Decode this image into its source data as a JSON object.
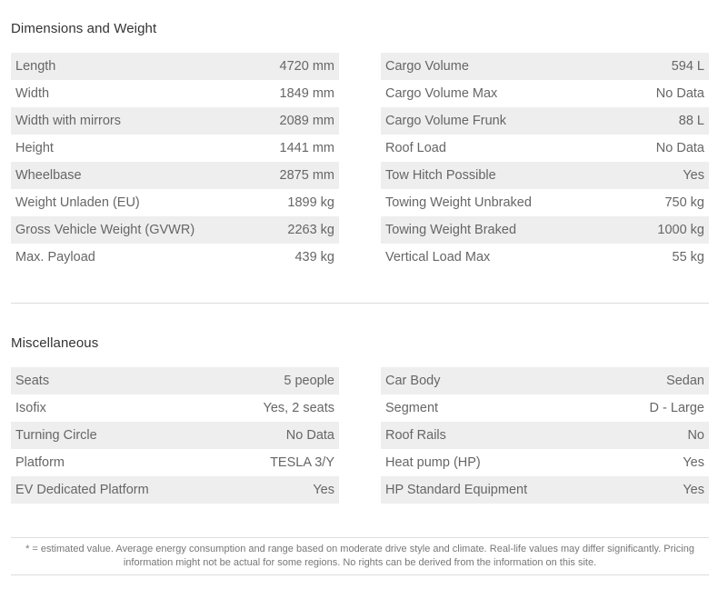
{
  "sections": [
    {
      "title": "Dimensions and Weight",
      "left": [
        [
          "Length",
          "4720 mm"
        ],
        [
          "Width",
          "1849 mm"
        ],
        [
          "Width with mirrors",
          "2089 mm"
        ],
        [
          "Height",
          "1441 mm"
        ],
        [
          "Wheelbase",
          "2875 mm"
        ],
        [
          "Weight Unladen (EU)",
          "1899 kg"
        ],
        [
          "Gross Vehicle Weight (GVWR)",
          "2263 kg"
        ],
        [
          "Max. Payload",
          "439 kg"
        ]
      ],
      "right": [
        [
          "Cargo Volume",
          "594 L"
        ],
        [
          "Cargo Volume Max",
          "No Data"
        ],
        [
          "Cargo Volume Frunk",
          "88 L"
        ],
        [
          "Roof Load",
          "No Data"
        ],
        [
          "Tow Hitch Possible",
          "Yes"
        ],
        [
          "Towing Weight Unbraked",
          "750 kg"
        ],
        [
          "Towing Weight Braked",
          "1000 kg"
        ],
        [
          "Vertical Load Max",
          "55 kg"
        ]
      ]
    },
    {
      "title": "Miscellaneous",
      "left": [
        [
          "Seats",
          "5 people"
        ],
        [
          "Isofix",
          "Yes, 2 seats"
        ],
        [
          "Turning Circle",
          "No Data"
        ],
        [
          "Platform",
          "TESLA 3/Y"
        ],
        [
          "EV Dedicated Platform",
          "Yes"
        ]
      ],
      "right": [
        [
          "Car Body",
          "Sedan"
        ],
        [
          "Segment",
          "D - Large"
        ],
        [
          "Roof Rails",
          "No"
        ],
        [
          "Heat pump (HP)",
          "Yes"
        ],
        [
          "HP Standard Equipment",
          "Yes"
        ]
      ]
    }
  ],
  "footer": "* = estimated value. Average energy consumption and range based on moderate drive style and climate. Real-life values may differ significantly. Pricing information might not be actual for some regions. No rights can be derived from the information on this site."
}
